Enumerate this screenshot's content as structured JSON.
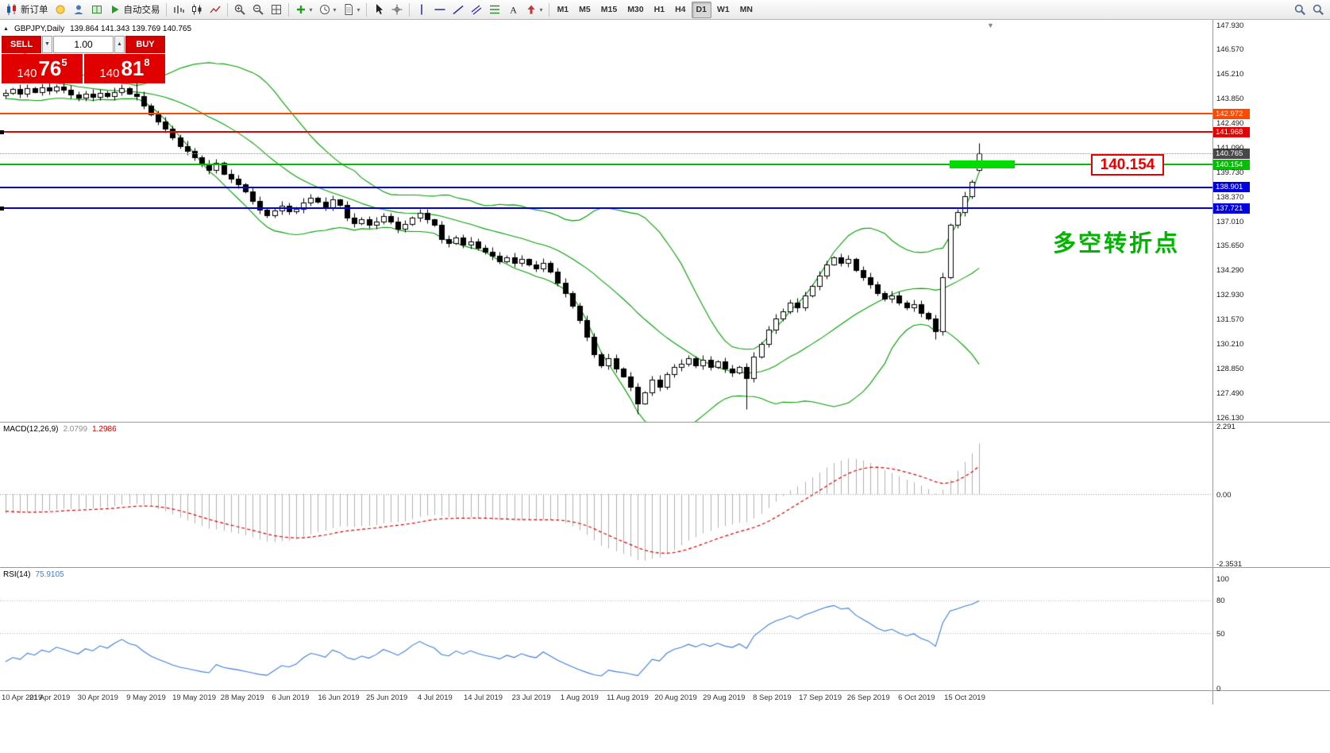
{
  "toolbar": {
    "items": [
      {
        "type": "btn",
        "name": "new-order-button",
        "icon": "newcandles",
        "label": "新订单"
      },
      {
        "type": "btn",
        "name": "market-watch-button",
        "icon": "bulb"
      },
      {
        "type": "btn",
        "name": "data-window-button",
        "icon": "person"
      },
      {
        "type": "btn",
        "name": "navigator-button",
        "icon": "book"
      },
      {
        "type": "btn",
        "name": "autotrading-button",
        "icon": "play",
        "label": "自动交易"
      },
      {
        "type": "sep"
      },
      {
        "type": "btn",
        "name": "bar-chart-button",
        "icon": "bars"
      },
      {
        "type": "btn",
        "name": "candlestick-chart-button",
        "icon": "candles"
      },
      {
        "type": "btn",
        "name": "line-chart-button",
        "icon": "linechart"
      },
      {
        "type": "sep"
      },
      {
        "type": "btn",
        "name": "zoom-in-button",
        "icon": "zoomin"
      },
      {
        "type": "btn",
        "name": "zoom-out-button",
        "icon": "zoomout"
      },
      {
        "type": "btn",
        "name": "tile-windows-button",
        "icon": "grid"
      },
      {
        "type": "sep"
      },
      {
        "type": "btn",
        "name": "indicators-button",
        "icon": "plusgreen",
        "caret": true
      },
      {
        "type": "btn",
        "name": "periods-button",
        "icon": "clock",
        "caret": true
      },
      {
        "type": "btn",
        "name": "templates-button",
        "icon": "doc",
        "caret": true
      },
      {
        "type": "sep"
      },
      {
        "type": "btn",
        "name": "cursor-button",
        "icon": "cursor"
      },
      {
        "type": "btn",
        "name": "crosshair-button",
        "icon": "crosshair"
      },
      {
        "type": "sep"
      },
      {
        "type": "btn",
        "name": "vertical-line-button",
        "icon": "vline"
      },
      {
        "type": "btn",
        "name": "horizontal-line-button",
        "icon": "hline"
      },
      {
        "type": "btn",
        "name": "trendline-button",
        "icon": "trend"
      },
      {
        "type": "btn",
        "name": "equidistant-channel-button",
        "icon": "channel"
      },
      {
        "type": "btn",
        "name": "fibonacci-button",
        "icon": "fibo"
      },
      {
        "type": "btn",
        "name": "text-button",
        "icon": "textA"
      },
      {
        "type": "btn",
        "name": "arrows-button",
        "icon": "arrowmark",
        "caret": true
      },
      {
        "type": "sep"
      },
      {
        "type": "tfgroup"
      },
      {
        "type": "spacer"
      },
      {
        "type": "btn",
        "name": "find-symbol-button",
        "icon": "search"
      },
      {
        "type": "btn",
        "name": "chart-search-button",
        "icon": "search"
      }
    ],
    "timeframes": [
      "M1",
      "M5",
      "M15",
      "M30",
      "H1",
      "H4",
      "D1",
      "W1",
      "MN"
    ],
    "active_timeframe": "D1"
  },
  "chart": {
    "header": {
      "arrow": "▲",
      "symbol": "GBPJPY,Daily",
      "ohlc": "139.864 141.343 139.769 140.765"
    },
    "shift_glyph": "▼",
    "annotation": {
      "text": "多空转折点",
      "color": "#00b400"
    },
    "callout": {
      "text": "140.154",
      "color": "#e60000",
      "price": 140.154
    },
    "levels": [
      {
        "price": 142.972,
        "label": "142.972",
        "color": "#ff4800",
        "style": "solid"
      },
      {
        "price": 141.968,
        "label": "141.968",
        "color": "#e60000",
        "style": "solid",
        "handle": true
      },
      {
        "price": 140.765,
        "label": "140.765",
        "color": "#484848",
        "style": "dotted"
      },
      {
        "price": 140.154,
        "label": "140.154",
        "color": "#00c000",
        "style": "solid"
      },
      {
        "price": 138.901,
        "label": "138.901",
        "color": "#0000e0",
        "style": "solid"
      },
      {
        "price": 137.721,
        "label": "137.721",
        "color": "#0000e0",
        "style": "solid",
        "handle": true
      }
    ],
    "highlight_band": {
      "price": 140.154,
      "color": "#00dc00"
    },
    "y_axis": {
      "max": 147.93,
      "min": 126.13,
      "ticks": [
        "147.930",
        "146.570",
        "145.210",
        "143.850",
        "142.490",
        "141.090",
        "139.730",
        "138.370",
        "137.010",
        "135.650",
        "134.290",
        "132.930",
        "131.570",
        "130.210",
        "128.850",
        "127.490",
        "126.130"
      ]
    },
    "x_axis": {
      "labels": [
        "10 Apr 2019",
        "21 Apr 2019",
        "30 Apr 2019",
        "9 May 2019",
        "19 May 2019",
        "28 May 2019",
        "6 Jun 2019",
        "16 Jun 2019",
        "25 Jun 2019",
        "4 Jul 2019",
        "14 Jul 2019",
        "23 Jul 2019",
        "1 Aug 2019",
        "11 Aug 2019",
        "20 Aug 2019",
        "29 Aug 2019",
        "8 Sep 2019",
        "17 Sep 2019",
        "26 Sep 2019",
        "6 Oct 2019",
        "15 Oct 2019"
      ]
    }
  },
  "trade": {
    "sell_label": "SELL",
    "buy_label": "BUY",
    "volume": "1.00",
    "step_down_glyph": "▼",
    "step_up_glyph": "▲",
    "sell_price": {
      "whole": "140",
      "pips": "76",
      "frac": "5"
    },
    "buy_price": {
      "whole": "140",
      "pips": "81",
      "frac": "8"
    }
  },
  "macd_panel": {
    "title": "MACD(12,26,9)",
    "value_main": "2.0799",
    "value_signal": "1.2986",
    "ticks": [
      {
        "v": 2.291,
        "label": "2.291"
      },
      {
        "v": 0,
        "label": "0.00"
      },
      {
        "v": -2.3531,
        "label": "-2.3531"
      }
    ]
  },
  "rsi_panel": {
    "title": "RSI(14)",
    "value": "75.9105",
    "ticks": [
      {
        "v": 100,
        "label": "100"
      },
      {
        "v": 80,
        "label": "80"
      },
      {
        "v": 50,
        "label": "50"
      },
      {
        "v": 0,
        "label": "0"
      }
    ],
    "levels": [
      80,
      50
    ]
  },
  "chart_data": {
    "type": "candlestick",
    "symbol": "GBPJPY",
    "timeframe": "Daily",
    "current_bar": {
      "open": 139.864,
      "high": 141.343,
      "low": 139.769,
      "close": 140.765
    },
    "first_open": 144.0,
    "closes": [
      144.15,
      144.35,
      144.1,
      144.4,
      144.2,
      144.45,
      144.25,
      144.5,
      144.3,
      144.05,
      143.85,
      144.1,
      143.9,
      144.15,
      143.95,
      144.2,
      144.4,
      144.1,
      143.95,
      143.45,
      142.95,
      142.55,
      142.15,
      141.65,
      141.2,
      140.9,
      140.55,
      140.15,
      139.85,
      140.25,
      139.65,
      139.35,
      139.05,
      138.65,
      138.15,
      137.65,
      137.35,
      137.6,
      137.85,
      137.55,
      137.7,
      138.05,
      138.3,
      138.1,
      137.8,
      138.2,
      137.9,
      137.2,
      136.9,
      137.1,
      136.8,
      137.0,
      137.3,
      137.0,
      136.6,
      136.85,
      137.2,
      137.45,
      137.1,
      136.8,
      136.0,
      135.8,
      136.1,
      135.7,
      135.9,
      135.55,
      135.3,
      135.1,
      134.8,
      135.0,
      134.7,
      134.9,
      134.6,
      134.4,
      134.7,
      134.2,
      133.6,
      133.0,
      132.3,
      131.5,
      130.6,
      129.6,
      129.0,
      129.4,
      128.8,
      128.4,
      127.8,
      126.9,
      127.5,
      128.2,
      127.8,
      128.5,
      128.9,
      129.1,
      129.4,
      129.0,
      129.3,
      128.9,
      129.2,
      128.8,
      128.6,
      128.9,
      128.3,
      129.5,
      130.2,
      131.0,
      131.6,
      132.0,
      132.5,
      132.2,
      132.9,
      133.4,
      134.0,
      134.6,
      135.0,
      134.7,
      134.9,
      134.3,
      133.9,
      133.5,
      133.0,
      132.7,
      132.9,
      132.5,
      132.2,
      132.4,
      131.9,
      131.6,
      130.9,
      133.9,
      136.8,
      137.5,
      138.4,
      139.2,
      140.765
    ],
    "warmup_closes": [
      147.2,
      146.9,
      146.6,
      146.4,
      146.1,
      145.9,
      146.2,
      145.7,
      145.4,
      145.2,
      145.5,
      145.1,
      144.9,
      145.2,
      144.8,
      144.6,
      144.9,
      144.5,
      144.7,
      144.3
    ],
    "wick_overrides": {
      "18": {
        "h": 144.85
      },
      "87": {
        "l": 126.3
      },
      "102": {
        "l": 126.55
      },
      "128": {
        "l": 130.45
      }
    },
    "indicators": {
      "bollinger": {
        "period": 20,
        "deviation": 2,
        "color": "#00a000"
      },
      "macd": {
        "fast": 12,
        "slow": 26,
        "signal": 9,
        "histogram_color": "#b0b0b0",
        "signal_color": "#e00000"
      },
      "rsi": {
        "period": 14,
        "color": "#3d7edb"
      }
    }
  }
}
